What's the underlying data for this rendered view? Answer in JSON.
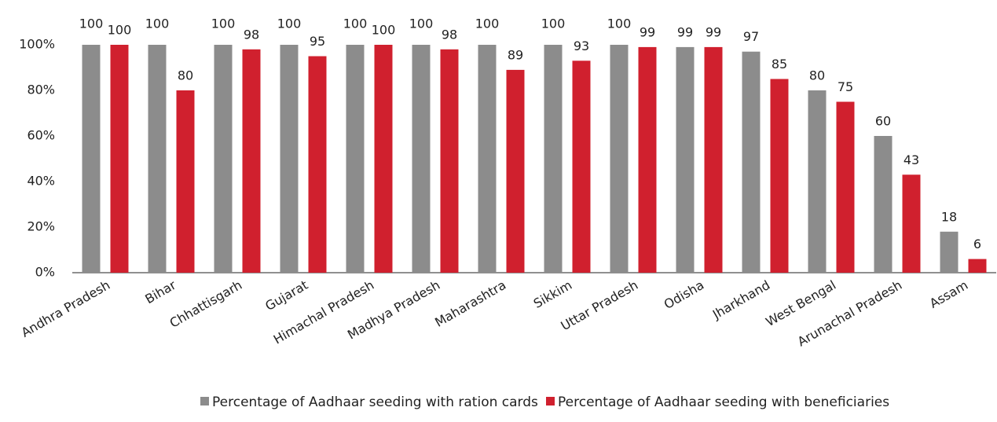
{
  "chart_data": {
    "type": "bar",
    "categories": [
      "Andhra Pradesh",
      "Bihar",
      "Chhattisgarh",
      "Gujarat",
      "Himachal Pradesh",
      "Madhya Pradesh",
      "Maharashtra",
      "Sikkim",
      "Uttar Pradesh",
      "Odisha",
      "Jharkhand",
      "West Bengal",
      "Arunachal Pradesh",
      "Assam"
    ],
    "series": [
      {
        "name": "Percentage of Aadhaar seeding with ration cards",
        "color": "#8c8c8c",
        "values": [
          100,
          100,
          100,
          100,
          100,
          100,
          100,
          100,
          100,
          99,
          97,
          80,
          60,
          18
        ]
      },
      {
        "name": "Percentage of Aadhaar seeding with beneficiaries",
        "color": "#d0202e",
        "values": [
          100,
          80,
          98,
          95,
          100,
          98,
          89,
          93,
          99,
          99,
          85,
          75,
          43,
          6
        ]
      }
    ],
    "ylim": [
      0,
      100
    ],
    "yticks": [
      {
        "value": 0,
        "label": "0%"
      },
      {
        "value": 20,
        "label": "20%"
      },
      {
        "value": 40,
        "label": "40%"
      },
      {
        "value": 60,
        "label": "60%"
      },
      {
        "value": 80,
        "label": "80%"
      },
      {
        "value": 100,
        "label": "100%"
      }
    ],
    "grid": false,
    "legend": "bottom"
  }
}
